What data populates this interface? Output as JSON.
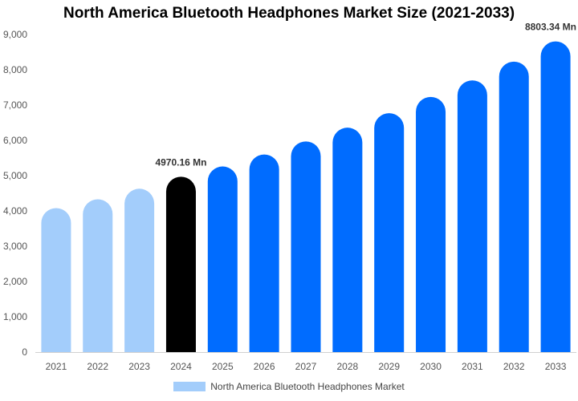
{
  "chart_data": {
    "type": "bar",
    "title": "North America Bluetooth Headphones Market Size (2021-2033)",
    "categories": [
      "2021",
      "2022",
      "2023",
      "2024",
      "2025",
      "2026",
      "2027",
      "2028",
      "2029",
      "2030",
      "2031",
      "2032",
      "2033"
    ],
    "series": [
      {
        "name": "North America Bluetooth Headphones Market",
        "values": [
          4080,
          4330,
          4630,
          4970.16,
          5260,
          5600,
          5970,
          6360,
          6770,
          7230,
          7700,
          8230,
          8803.34
        ]
      }
    ],
    "bar_colors": [
      "#a3cdfb",
      "#a3cdfb",
      "#a3cdfb",
      "#000000",
      "#006cff",
      "#006cff",
      "#006cff",
      "#006cff",
      "#006cff",
      "#006cff",
      "#006cff",
      "#006cff",
      "#006cff"
    ],
    "data_labels": [
      {
        "index": 3,
        "text": "4970.16 Mn"
      },
      {
        "index": 12,
        "text": "8803.34 Mn"
      }
    ],
    "y_ticks": [
      "0",
      "1,000",
      "2,000",
      "3,000",
      "4,000",
      "5,000",
      "6,000",
      "7,000",
      "8,000",
      "9,000"
    ],
    "ylim": [
      0,
      9000
    ],
    "xlabel": "",
    "ylabel": "",
    "grid": false,
    "legend": {
      "placement": "bottom",
      "swatch_color": "#a3cdfb"
    }
  }
}
